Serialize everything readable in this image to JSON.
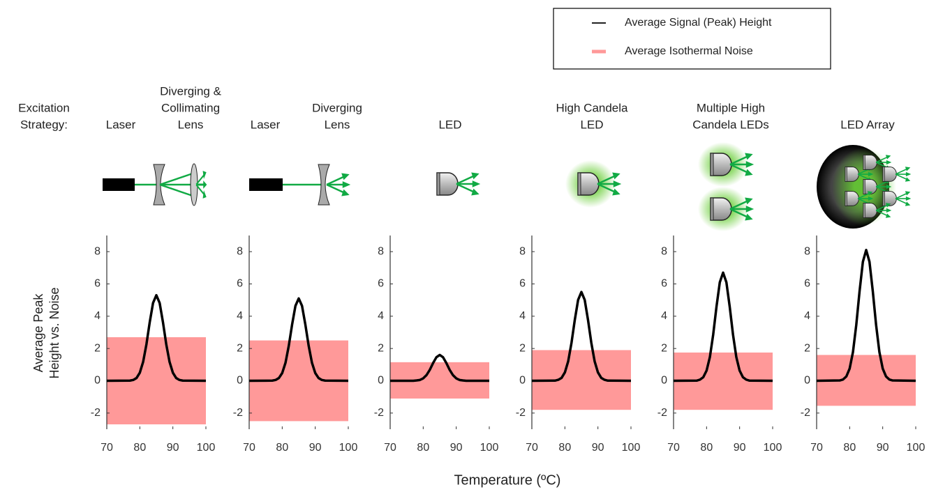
{
  "row_label": [
    "Excitation",
    "Strategy:"
  ],
  "ylabel": [
    "Average Peak",
    "Height vs. Noise"
  ],
  "xlabel": "Temperature (ºC)",
  "legend": [
    {
      "name": "Average Signal (Peak) Height",
      "color": "#000000"
    },
    {
      "name": "Average Isothermal Noise",
      "color": "#ff9999"
    }
  ],
  "chart_data": [
    {
      "type": "line",
      "title": [
        [
          "Laser"
        ],
        [
          "Diverging &",
          "Collimating",
          "Lens"
        ]
      ],
      "x": [
        70,
        77,
        78,
        79,
        80,
        81,
        82,
        83,
        84,
        85,
        86,
        87,
        88,
        89,
        90,
        91,
        92,
        93,
        100
      ],
      "series": [
        {
          "color": "#000000",
          "values": [
            0,
            0.01,
            0.05,
            0.17,
            0.5,
            1.17,
            2.26,
            3.63,
            4.82,
            5.3,
            4.82,
            3.63,
            2.26,
            1.17,
            0.5,
            0.17,
            0.05,
            0.01,
            0
          ]
        },
        {
          "color": "#ff9999",
          "low": -2.7,
          "high": 2.7
        }
      ],
      "xlim": [
        70,
        100
      ],
      "xticks": [
        70,
        80,
        90,
        100
      ],
      "ylim": [
        -3,
        9
      ],
      "yticks": [
        -2,
        0,
        2,
        4,
        6,
        8
      ]
    },
    {
      "type": "line",
      "title": [
        [
          "Laser"
        ],
        [
          "Diverging",
          "Lens"
        ]
      ],
      "x": [
        70,
        77,
        78,
        79,
        80,
        81,
        82,
        83,
        84,
        85,
        86,
        87,
        88,
        89,
        90,
        91,
        92,
        93,
        100
      ],
      "series": [
        {
          "color": "#000000",
          "values": [
            0,
            0.01,
            0.05,
            0.17,
            0.48,
            1.12,
            2.18,
            3.49,
            4.64,
            5.1,
            4.64,
            3.49,
            2.18,
            1.12,
            0.48,
            0.17,
            0.05,
            0.01,
            0
          ]
        },
        {
          "color": "#ff9999",
          "low": -2.5,
          "high": 2.5
        }
      ],
      "xlim": [
        70,
        100
      ],
      "xticks": [
        70,
        80,
        90,
        100
      ],
      "ylim": [
        -3,
        9
      ],
      "yticks": [
        -2,
        0,
        2,
        4,
        6,
        8
      ]
    },
    {
      "type": "line",
      "title": [
        [
          "LED"
        ]
      ],
      "x": [
        70,
        77,
        78,
        79,
        80,
        81,
        82,
        83,
        84,
        85,
        86,
        87,
        88,
        89,
        90,
        91,
        92,
        93,
        100
      ],
      "series": [
        {
          "color": "#000000",
          "values": [
            0,
            0,
            0.02,
            0.05,
            0.15,
            0.35,
            0.68,
            1.1,
            1.46,
            1.6,
            1.46,
            1.1,
            0.68,
            0.35,
            0.15,
            0.05,
            0.02,
            0,
            0
          ]
        },
        {
          "color": "#ff9999",
          "low": -1.1,
          "high": 1.15
        }
      ],
      "xlim": [
        70,
        100
      ],
      "xticks": [
        70,
        80,
        90,
        100
      ],
      "ylim": [
        -3,
        9
      ],
      "yticks": [
        -2,
        0,
        2,
        4,
        6,
        8
      ]
    },
    {
      "type": "line",
      "title": [
        [
          "High Candela",
          "LED"
        ]
      ],
      "x": [
        70,
        77,
        78,
        79,
        80,
        81,
        82,
        83,
        84,
        85,
        86,
        87,
        88,
        89,
        90,
        91,
        92,
        93,
        100
      ],
      "series": [
        {
          "color": "#000000",
          "values": [
            0,
            0.01,
            0.06,
            0.18,
            0.52,
            1.21,
            2.35,
            3.77,
            5.01,
            5.5,
            5.01,
            3.77,
            2.35,
            1.21,
            0.52,
            0.18,
            0.06,
            0.01,
            0
          ]
        },
        {
          "color": "#ff9999",
          "low": -1.8,
          "high": 1.9
        }
      ],
      "xlim": [
        70,
        100
      ],
      "xticks": [
        70,
        80,
        90,
        100
      ],
      "ylim": [
        -3,
        9
      ],
      "yticks": [
        -2,
        0,
        2,
        4,
        6,
        8
      ]
    },
    {
      "type": "line",
      "title": [
        [
          "Multiple High",
          "Candela LEDs"
        ]
      ],
      "x": [
        70,
        77,
        78,
        79,
        80,
        81,
        82,
        83,
        84,
        85,
        86,
        87,
        88,
        89,
        90,
        91,
        92,
        93,
        100
      ],
      "series": [
        {
          "color": "#000000",
          "values": [
            0,
            0.01,
            0.07,
            0.22,
            0.63,
            1.47,
            2.86,
            4.59,
            6.1,
            6.7,
            6.1,
            4.59,
            2.86,
            1.47,
            0.63,
            0.22,
            0.07,
            0.01,
            0
          ]
        },
        {
          "color": "#ff9999",
          "low": -1.8,
          "high": 1.75
        }
      ],
      "xlim": [
        70,
        100
      ],
      "xticks": [
        70,
        80,
        90,
        100
      ],
      "ylim": [
        -3,
        9
      ],
      "yticks": [
        -2,
        0,
        2,
        4,
        6,
        8
      ]
    },
    {
      "type": "line",
      "title": [
        [
          "LED Array"
        ]
      ],
      "x": [
        70,
        77,
        78,
        79,
        80,
        81,
        82,
        83,
        84,
        85,
        86,
        87,
        88,
        89,
        90,
        91,
        92,
        93,
        100
      ],
      "series": [
        {
          "color": "#000000",
          "values": [
            0,
            0.02,
            0.08,
            0.27,
            0.76,
            1.78,
            3.46,
            5.55,
            7.37,
            8.1,
            7.37,
            5.55,
            3.46,
            1.78,
            0.76,
            0.27,
            0.08,
            0.02,
            0
          ]
        },
        {
          "color": "#ff9999",
          "low": -1.55,
          "high": 1.6
        }
      ],
      "xlim": [
        70,
        100
      ],
      "xticks": [
        70,
        80,
        90,
        100
      ],
      "ylim": [
        -3,
        9
      ],
      "yticks": [
        -2,
        0,
        2,
        4,
        6,
        8
      ]
    }
  ]
}
